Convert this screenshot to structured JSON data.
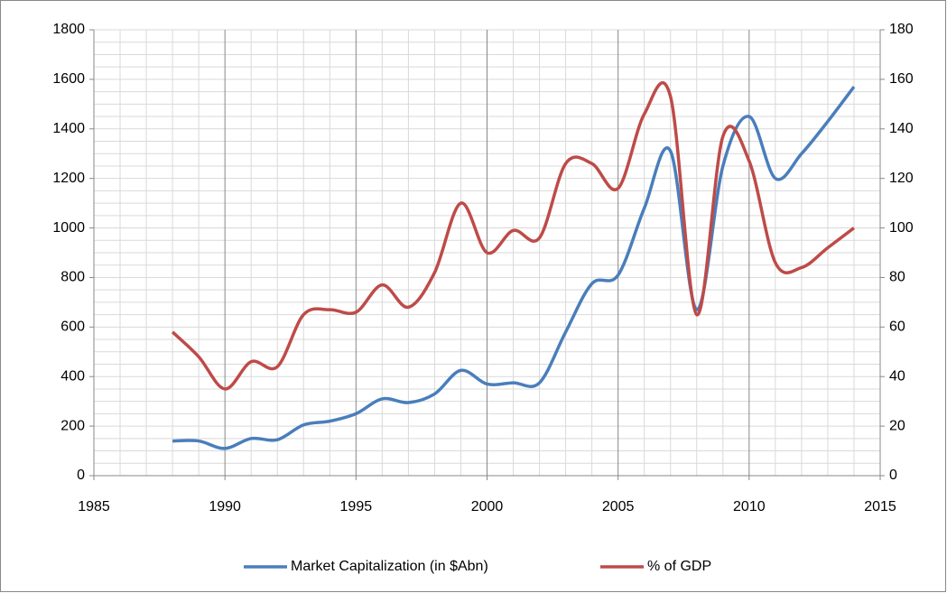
{
  "chart_data": {
    "type": "line",
    "x": [
      1988,
      1989,
      1990,
      1991,
      1992,
      1993,
      1994,
      1995,
      1996,
      1997,
      1998,
      1999,
      2000,
      2001,
      2002,
      2003,
      2004,
      2005,
      2006,
      2007,
      2008,
      2009,
      2010,
      2011,
      2012,
      2013,
      2014
    ],
    "series": [
      {
        "name": "Market Capitalization (in $Abn)",
        "color": "#4a7ebb",
        "values": [
          140,
          140,
          110,
          150,
          145,
          205,
          220,
          250,
          310,
          295,
          330,
          425,
          370,
          375,
          375,
          580,
          775,
          810,
          1080,
          1310,
          670,
          1250,
          1450,
          1200,
          1300,
          1430,
          1570
        ]
      },
      {
        "name": "% of GDP",
        "color": "#be4b48",
        "axis": "y2",
        "values": [
          58,
          48,
          35,
          46,
          44,
          65,
          67,
          66,
          77,
          68,
          82,
          110,
          90,
          99,
          96,
          126,
          126,
          116,
          146,
          153,
          65,
          137,
          127,
          86,
          84,
          92,
          100
        ]
      }
    ],
    "xlim": [
      1985,
      2015
    ],
    "xticks": [
      1985,
      1990,
      1995,
      2000,
      2005,
      2010,
      2015
    ],
    "ylim": [
      0,
      1800
    ],
    "yticks": [
      0,
      200,
      400,
      600,
      800,
      1000,
      1200,
      1400,
      1600,
      1800
    ],
    "y2lim": [
      0,
      180
    ],
    "y2ticks": [
      0,
      20,
      40,
      60,
      80,
      100,
      120,
      140,
      160,
      180
    ],
    "grid": true,
    "smooth": true,
    "legend": "bottom"
  }
}
